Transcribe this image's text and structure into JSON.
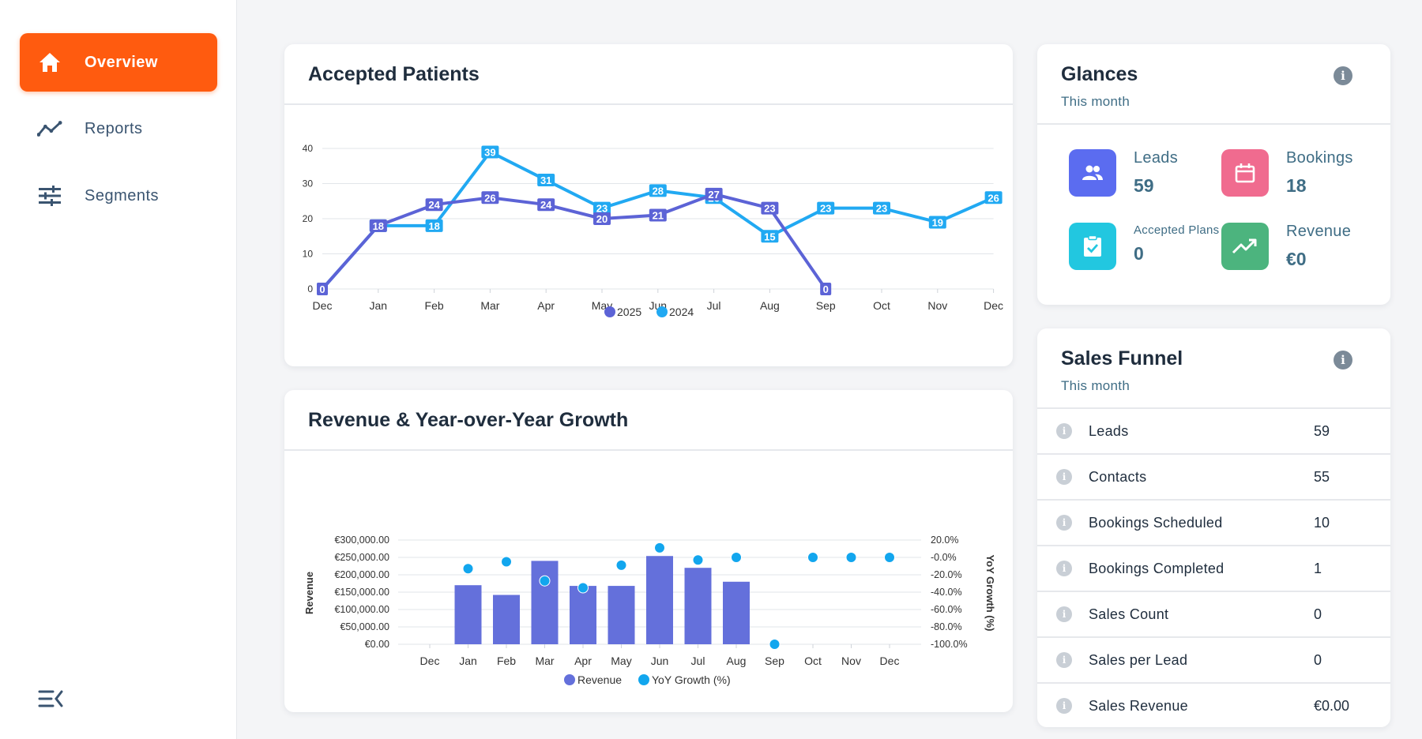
{
  "sidebar": {
    "items": [
      {
        "label": "Overview",
        "icon": "home-icon",
        "active": true
      },
      {
        "label": "Reports",
        "icon": "trend-line-icon",
        "active": false
      },
      {
        "label": "Segments",
        "icon": "sliders-icon",
        "active": false
      }
    ],
    "collapse_icon": "collapse-menu-icon"
  },
  "accepted_patients": {
    "title": "Accepted Patients"
  },
  "revenue_growth": {
    "title": "Revenue & Year-over-Year Growth"
  },
  "glances": {
    "title": "Glances",
    "subtitle": "This month",
    "items": [
      {
        "label": "Leads",
        "value": "59",
        "icon": "users-icon",
        "color": "#5b6cf0"
      },
      {
        "label": "Bookings",
        "value": "18",
        "icon": "calendar-icon",
        "color": "#f06b8f"
      },
      {
        "label": "Accepted Plans",
        "value": "0",
        "icon": "clipboard-check-icon",
        "color": "#22c7e0"
      },
      {
        "label": "Revenue",
        "value": "€0",
        "icon": "trending-up-icon",
        "color": "#4cb47e"
      }
    ]
  },
  "sales_funnel": {
    "title": "Sales Funnel",
    "subtitle": "This month",
    "rows": [
      {
        "label": "Leads",
        "value": "59"
      },
      {
        "label": "Contacts",
        "value": "55"
      },
      {
        "label": "Bookings Scheduled",
        "value": "10"
      },
      {
        "label": "Bookings Completed",
        "value": "1"
      },
      {
        "label": "Sales Count",
        "value": "0"
      },
      {
        "label": "Sales per Lead",
        "value": "0"
      },
      {
        "label": "Sales Revenue",
        "value": "€0.00"
      }
    ]
  },
  "colors": {
    "accent": "#ff5b0f",
    "series_2025": "#5c63d6",
    "series_2024": "#21a9f2",
    "revenue_bar": "#6470db",
    "yoy_dot": "#12a6ee"
  },
  "chart_data": [
    {
      "type": "line",
      "title": "Accepted Patients",
      "categories": [
        "Dec",
        "Jan",
        "Feb",
        "Mar",
        "Apr",
        "May",
        "Jun",
        "Jul",
        "Aug",
        "Sep",
        "Oct",
        "Nov",
        "Dec"
      ],
      "ylim": [
        0,
        40
      ],
      "yticks": [
        0,
        10,
        20,
        30,
        40
      ],
      "grid": true,
      "legend": "bottom-center",
      "series": [
        {
          "name": "2025",
          "values": [
            0,
            18,
            24,
            26,
            24,
            20,
            21,
            27,
            23,
            0,
            null,
            null,
            null
          ]
        },
        {
          "name": "2024",
          "values": [
            0,
            18,
            18,
            39,
            31,
            23,
            28,
            26,
            15,
            23,
            23,
            19,
            26
          ]
        }
      ]
    },
    {
      "type": "bar",
      "title": "Revenue & Year-over-Year Growth",
      "categories": [
        "Dec",
        "Jan",
        "Feb",
        "Mar",
        "Apr",
        "May",
        "Jun",
        "Jul",
        "Aug",
        "Sep",
        "Oct",
        "Nov",
        "Dec"
      ],
      "ylabel": "Revenue",
      "ylabel_right": "YoY Growth (%)",
      "ylim": [
        0,
        300000
      ],
      "yticks": [
        "€0.00",
        "€50,000.00",
        "€100,000.00",
        "€150,000.00",
        "€200,000.00",
        "€250,000.00",
        "€300,000.00"
      ],
      "ylim_right": [
        -100,
        20
      ],
      "yticks_right": [
        "-100.0%",
        "-80.0%",
        "-60.0%",
        "-40.0%",
        "-20.0%",
        "-0.0%",
        "20.0%"
      ],
      "grid": true,
      "legend": "bottom-center",
      "series": [
        {
          "name": "Revenue",
          "kind": "bar",
          "values": [
            0,
            170000,
            142000,
            240000,
            168000,
            168000,
            254000,
            220000,
            180000,
            0,
            0,
            0,
            0
          ]
        },
        {
          "name": "YoY Growth (%)",
          "kind": "scatter",
          "values": [
            null,
            -13,
            -5,
            -27,
            -35,
            -9,
            11,
            -3,
            0,
            -100,
            0,
            0,
            0
          ]
        }
      ]
    }
  ]
}
